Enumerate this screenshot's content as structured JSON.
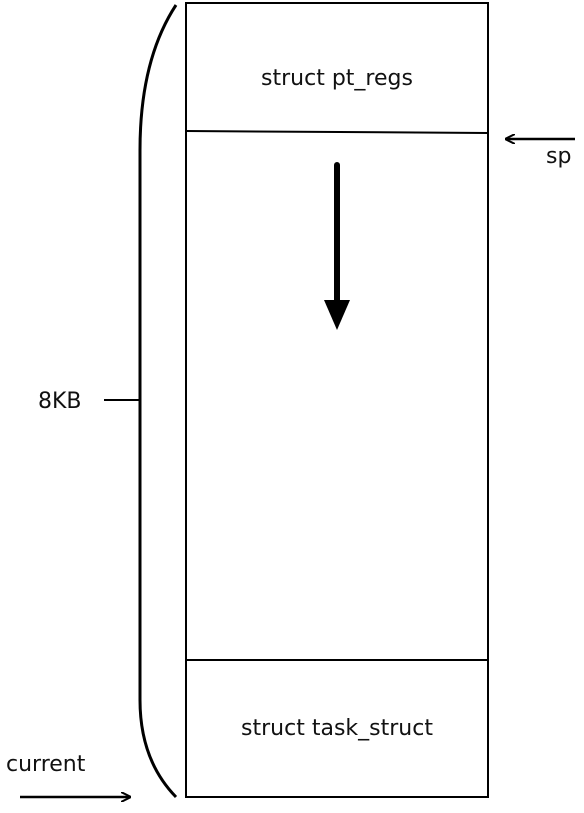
{
  "diagram": {
    "regions": {
      "top": "struct pt_regs",
      "bottom": "struct task_struct"
    },
    "labels": {
      "size": "8KB",
      "stack_pointer": "sp",
      "current": "current"
    },
    "colors": {
      "stroke": "#000000",
      "text": "#111111",
      "background": "#ffffff"
    }
  }
}
